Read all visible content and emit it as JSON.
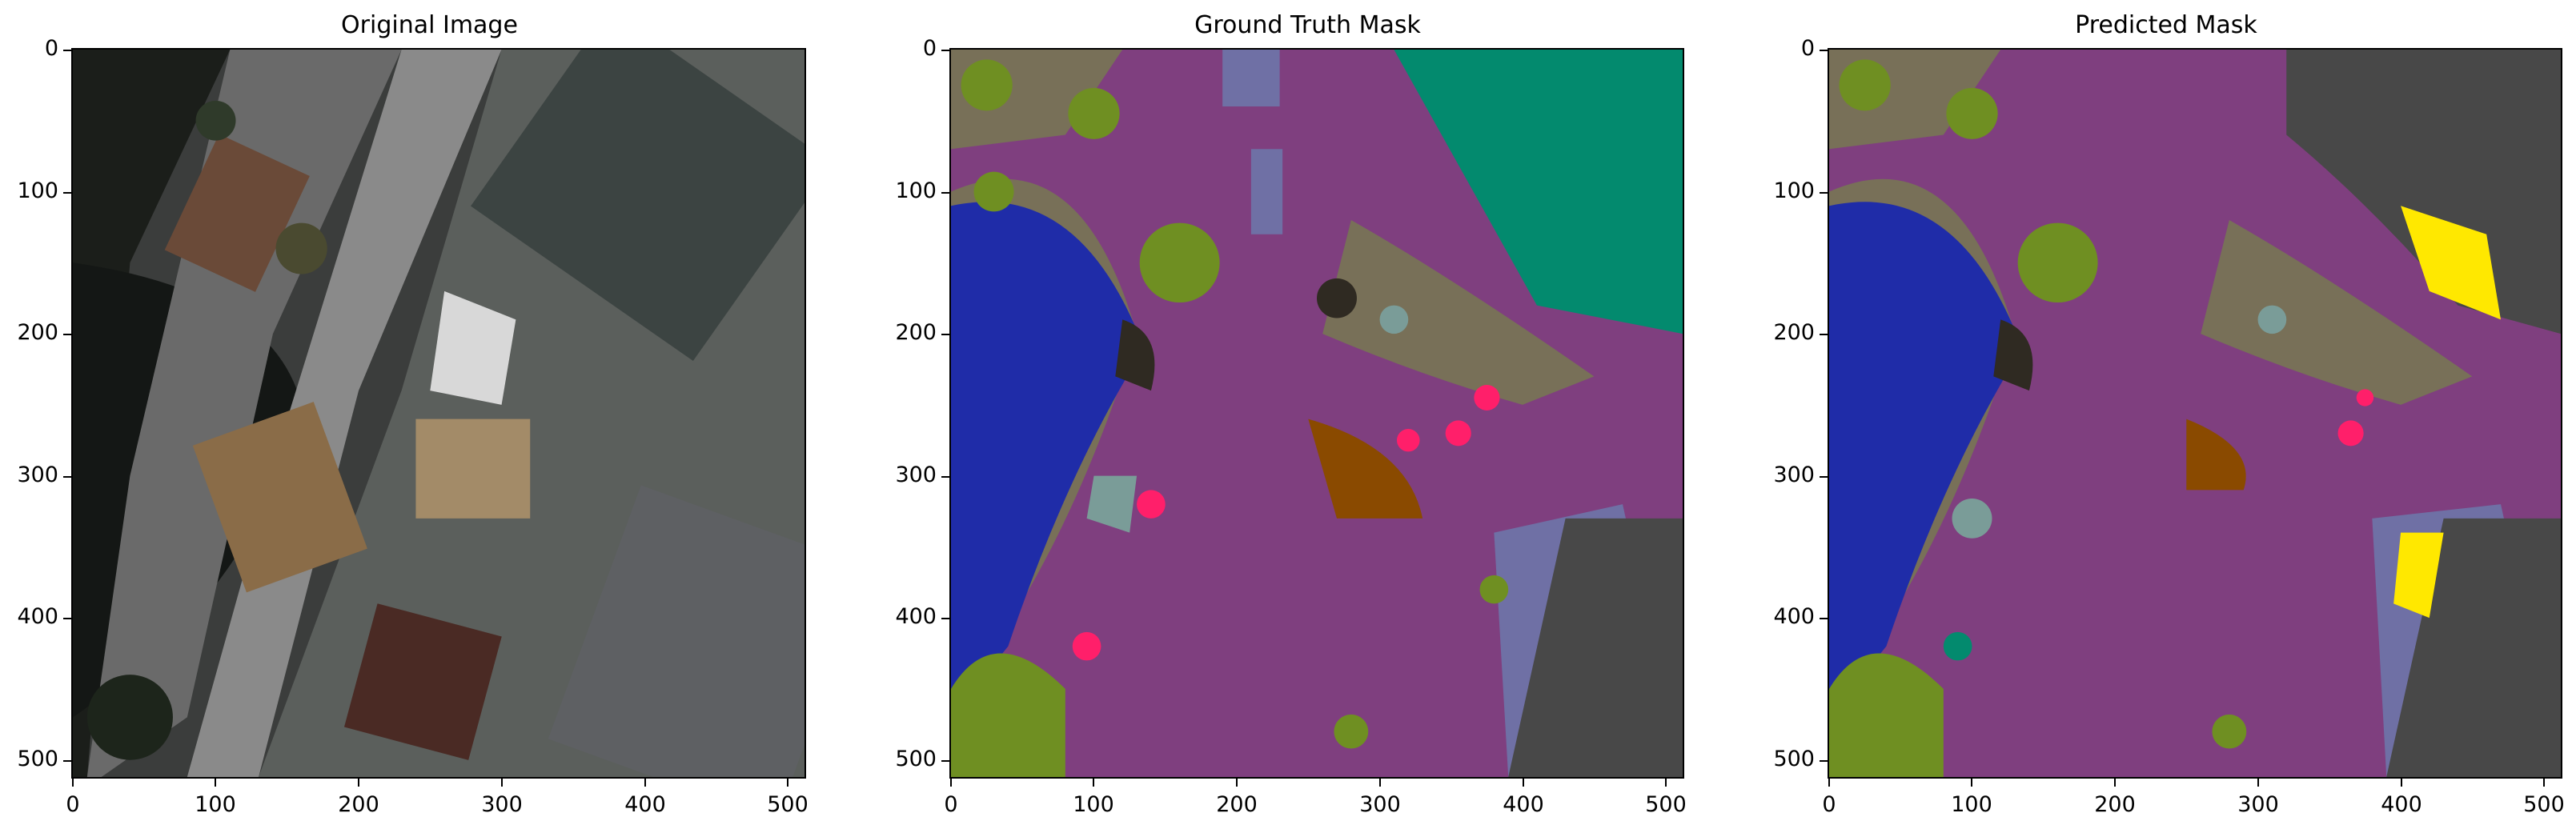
{
  "panels": [
    {
      "title": "Original Image",
      "kind": "photo"
    },
    {
      "title": "Ground Truth Mask",
      "kind": "mask_gt"
    },
    {
      "title": "Predicted Mask",
      "kind": "mask_pred"
    }
  ],
  "axis": {
    "x_ticks": [
      "0",
      "100",
      "200",
      "300",
      "400",
      "500"
    ],
    "y_ticks": [
      "0",
      "100",
      "200",
      "300",
      "400",
      "500"
    ],
    "x_tick_values": [
      0,
      100,
      200,
      300,
      400,
      500
    ],
    "y_tick_values": [
      0,
      100,
      200,
      300,
      400,
      500
    ],
    "extent": [
      0,
      512
    ]
  },
  "colors": {
    "road": "#7f3f7f",
    "water": "#1f2ca8",
    "vegetation": "#6f8f22",
    "grass_ground": "#787058",
    "roof_teal": "#038a6e",
    "building_gray": "#484848",
    "dark_soil": "#2f2a22",
    "brown_soil": "#8a4a00",
    "pink_person": "#ff1f6a",
    "light_gray_green": "#7a9c98",
    "lavender_path": "#6f70a5",
    "yellow": "#ffe800"
  }
}
